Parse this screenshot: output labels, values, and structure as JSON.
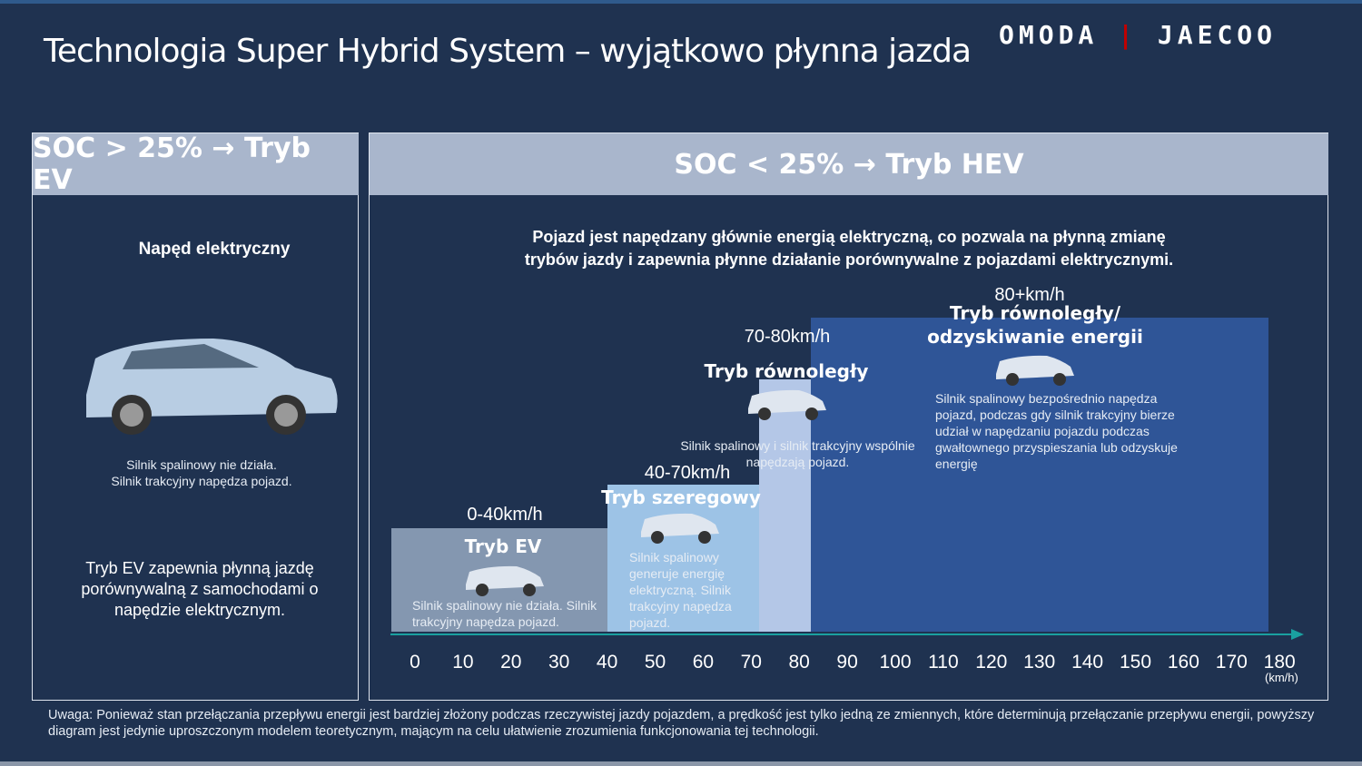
{
  "title": "Technologia Super Hybrid System – wyjątkowo płynna jazda",
  "logo": {
    "left": "OMODA",
    "right": "JAECOO",
    "separator_color": "#c00000"
  },
  "left_panel": {
    "header": "SOC > 25% → Tryb EV",
    "heading": "Napęd elektryczny",
    "desc": [
      "Silnik spalinowy nie działa.",
      "Silnik trakcyjny napędza pojazd."
    ],
    "summary": "Tryb EV zapewnia płynną jazdę porównywalną z samochodami o napędzie elektrycznym."
  },
  "right_panel": {
    "header": "SOC < 25% → Tryb HEV",
    "intro": [
      "Pojazd jest napędzany głównie energią elektryczną, co pozwala na płynną zmianę",
      "trybów jazdy i zapewnia płynne działanie porównywalne z pojazdami elektrycznymi."
    ]
  },
  "modes": [
    {
      "speed": "0-40km/h",
      "name": "Tryb EV",
      "desc": "Silnik spalinowy nie działa. Silnik trakcyjny napędza pojazd.",
      "range": [
        0,
        40
      ],
      "color": "#8497b0"
    },
    {
      "speed": "40-70km/h",
      "name": "Tryb szeregowy",
      "desc": "Silnik spalinowy generuje energię elektryczną. Silnik trakcyjny napędza pojazd.",
      "range": [
        40,
        70
      ],
      "color": "#9dc3e6"
    },
    {
      "speed": "70-80km/h",
      "name": "Tryb równoległy",
      "desc": "Silnik spalinowy i silnik trakcyjny wspólnie napędzają pojazd.",
      "range": [
        70,
        80
      ],
      "color": "#b4c7e7"
    },
    {
      "speed": "80+km/h",
      "name": "Tryb równoległy/ odzyskiwanie energii",
      "desc": "Silnik spalinowy bezpośrednio napędza pojazd, podczas gdy silnik trakcyjny bierze udział w napędzaniu pojazdu podczas gwałtownego przyspieszania lub odzyskuje energię",
      "range": [
        80,
        180
      ],
      "color": "#2f5597"
    }
  ],
  "axis": {
    "ticks": [
      "0",
      "10",
      "20",
      "30",
      "40",
      "50",
      "60",
      "70",
      "80",
      "90",
      "100",
      "110",
      "120",
      "130",
      "140",
      "150",
      "160",
      "170",
      "180"
    ],
    "unit": "(km/h)",
    "color": "#1aa0a0"
  },
  "footnote": "Uwaga: Ponieważ stan przełączania przepływu energii jest bardziej złożony podczas rzeczywistej jazdy pojazdem, a prędkość jest tylko jedną ze zmiennych, które determinują przełączanie przepływu energii, powyższy diagram jest jedynie uproszczonym modelem teoretycznym, mającym na celu ułatwienie zrozumienia funkcjonowania tej technologii."
}
